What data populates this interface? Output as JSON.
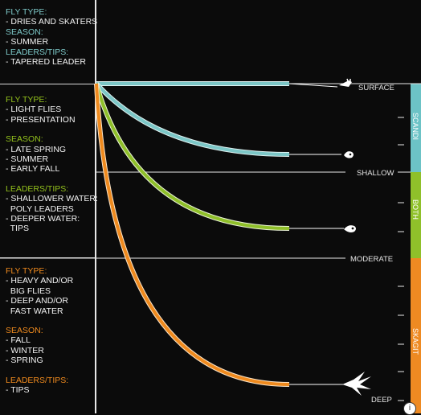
{
  "colors": {
    "surface": "#7cc7c7",
    "shallow": "#8fbf2a",
    "moderate": "#8fbf2a",
    "deep": "#ef8a1e",
    "scandi_band": "#6cc3c6",
    "both_band": "#8fc02a",
    "skagit_band": "#ee8a22"
  },
  "panels": [
    {
      "color": "#7cc7c7",
      "sections": [
        {
          "heading": "FLY TYPE:",
          "items": [
            "- DRIES AND SKATERS"
          ]
        },
        {
          "heading": "SEASON:",
          "items": [
            "- SUMMER"
          ]
        },
        {
          "heading": "LEADERS/TIPS:",
          "items": [
            "- TAPERED LEADER"
          ]
        }
      ]
    },
    {
      "color": "#93c11c",
      "sections": [
        {
          "heading": "FLY TYPE:",
          "items": [
            "- LIGHT FLIES",
            "- PRESENTATION"
          ]
        },
        {
          "heading": "SEASON:",
          "items": [
            "- LATE SPRING",
            "- SUMMER",
            "- EARLY FALL"
          ]
        },
        {
          "heading": "LEADERS/TIPS:",
          "items": [
            "- SHALLOWER WATER:",
            "  POLY LEADERS",
            "- DEEPER WATER:",
            "  TIPS"
          ]
        }
      ]
    },
    {
      "color": "#ef8a1e",
      "sections": [
        {
          "heading": "FLY TYPE:",
          "items": [
            "- HEAVY AND/OR",
            "  BIG FLIES",
            "- DEEP AND/OR",
            "  FAST WATER"
          ]
        },
        {
          "heading": "SEASON:",
          "items": [
            "- FALL",
            "- WINTER",
            "- SPRING"
          ]
        },
        {
          "heading": "LEADERS/TIPS:",
          "items": [
            "- TIPS"
          ]
        }
      ]
    }
  ],
  "depth_labels": {
    "surface": "SURFACE",
    "shallow": "SHALLOW",
    "moderate": "MODERATE",
    "deep": "DEEP"
  },
  "bands": {
    "scandi": "SCANDI",
    "both": "BOTH",
    "skagit": "SKAGIT"
  },
  "info_icon": "info-circle-icon"
}
